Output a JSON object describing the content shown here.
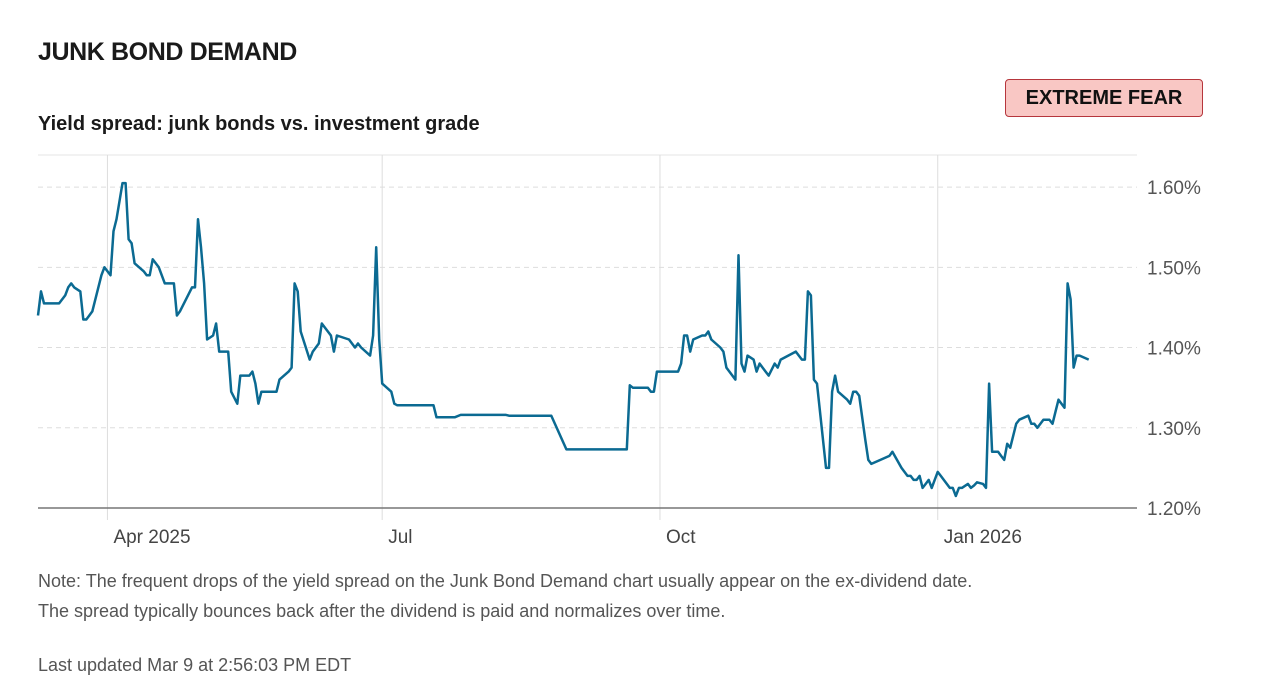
{
  "header": {
    "title": "JUNK BOND DEMAND",
    "subtitle": "Yield spread: junk bonds vs. investment grade",
    "badge": "EXTREME FEAR"
  },
  "colors": {
    "line": "#0b6a92",
    "grid": "#dddddd",
    "badge_bg": "#f9c7c4",
    "badge_border": "#b6363c"
  },
  "chart_data": {
    "type": "line",
    "title": "Yield spread: junk bonds vs. investment grade",
    "xlabel": "",
    "ylabel": "",
    "y_unit": "%",
    "ylim": [
      1.2,
      1.64
    ],
    "yticks": [
      1.2,
      1.3,
      1.4,
      1.5,
      1.6
    ],
    "ytick_labels": [
      "1.20%",
      "1.30%",
      "1.40%",
      "1.50%",
      "1.60%"
    ],
    "x_unit": "days since 2025-03-09",
    "xlim": [
      0,
      364
    ],
    "xticks": [
      {
        "x": 23,
        "label": "Apr 2025"
      },
      {
        "x": 114,
        "label": "Jul"
      },
      {
        "x": 206,
        "label": "Oct"
      },
      {
        "x": 298,
        "label": "Jan 2026"
      }
    ],
    "gridlines": true,
    "series": [
      {
        "name": "Yield spread",
        "points": [
          [
            0,
            1.44
          ],
          [
            1,
            1.47
          ],
          [
            2,
            1.455
          ],
          [
            7,
            1.455
          ],
          [
            9,
            1.465
          ],
          [
            10,
            1.475
          ],
          [
            11,
            1.48
          ],
          [
            12,
            1.475
          ],
          [
            14,
            1.47
          ],
          [
            15,
            1.435
          ],
          [
            16,
            1.435
          ],
          [
            17,
            1.44
          ],
          [
            18,
            1.445
          ],
          [
            21,
            1.49
          ],
          [
            22,
            1.5
          ],
          [
            24,
            1.49
          ],
          [
            25,
            1.545
          ],
          [
            26,
            1.56
          ],
          [
            28,
            1.605
          ],
          [
            29,
            1.605
          ],
          [
            30,
            1.535
          ],
          [
            31,
            1.53
          ],
          [
            32,
            1.505
          ],
          [
            35,
            1.495
          ],
          [
            36,
            1.49
          ],
          [
            37,
            1.49
          ],
          [
            38,
            1.51
          ],
          [
            40,
            1.5
          ],
          [
            42,
            1.48
          ],
          [
            45,
            1.48
          ],
          [
            46,
            1.44
          ],
          [
            47,
            1.445
          ],
          [
            51,
            1.475
          ],
          [
            52,
            1.475
          ],
          [
            53,
            1.56
          ],
          [
            54,
            1.525
          ],
          [
            55,
            1.48
          ],
          [
            56,
            1.41
          ],
          [
            58,
            1.415
          ],
          [
            59,
            1.43
          ],
          [
            60,
            1.395
          ],
          [
            63,
            1.395
          ],
          [
            64,
            1.345
          ],
          [
            66,
            1.33
          ],
          [
            67,
            1.365
          ],
          [
            70,
            1.365
          ],
          [
            71,
            1.37
          ],
          [
            72,
            1.355
          ],
          [
            73,
            1.33
          ],
          [
            74,
            1.345
          ],
          [
            79,
            1.345
          ],
          [
            80,
            1.36
          ],
          [
            83,
            1.37
          ],
          [
            84,
            1.375
          ],
          [
            85,
            1.48
          ],
          [
            86,
            1.47
          ],
          [
            87,
            1.42
          ],
          [
            90,
            1.385
          ],
          [
            91,
            1.395
          ],
          [
            93,
            1.405
          ],
          [
            94,
            1.43
          ],
          [
            97,
            1.415
          ],
          [
            98,
            1.395
          ],
          [
            99,
            1.415
          ],
          [
            103,
            1.41
          ],
          [
            105,
            1.4
          ],
          [
            106,
            1.405
          ],
          [
            107,
            1.4
          ],
          [
            110,
            1.39
          ],
          [
            111,
            1.415
          ],
          [
            112,
            1.525
          ],
          [
            113,
            1.41
          ],
          [
            114,
            1.355
          ],
          [
            117,
            1.345
          ],
          [
            118,
            1.33
          ],
          [
            119,
            1.328
          ],
          [
            131,
            1.328
          ],
          [
            132,
            1.313
          ],
          [
            138,
            1.313
          ],
          [
            140,
            1.316
          ],
          [
            155,
            1.316
          ],
          [
            156,
            1.315
          ],
          [
            170,
            1.315
          ],
          [
            175,
            1.273
          ],
          [
            195,
            1.273
          ],
          [
            196,
            1.353
          ],
          [
            197,
            1.35
          ],
          [
            198,
            1.35
          ],
          [
            202,
            1.35
          ],
          [
            203,
            1.345
          ],
          [
            204,
            1.345
          ],
          [
            205,
            1.37
          ],
          [
            212,
            1.37
          ],
          [
            213,
            1.38
          ],
          [
            214,
            1.415
          ],
          [
            215,
            1.415
          ],
          [
            216,
            1.395
          ],
          [
            217,
            1.41
          ],
          [
            220,
            1.415
          ],
          [
            221,
            1.415
          ],
          [
            222,
            1.42
          ],
          [
            223,
            1.41
          ],
          [
            226,
            1.4
          ],
          [
            227,
            1.395
          ],
          [
            228,
            1.375
          ],
          [
            230,
            1.365
          ],
          [
            231,
            1.36
          ],
          [
            232,
            1.515
          ],
          [
            233,
            1.38
          ],
          [
            234,
            1.37
          ],
          [
            235,
            1.39
          ],
          [
            237,
            1.385
          ],
          [
            238,
            1.37
          ],
          [
            239,
            1.38
          ],
          [
            241,
            1.37
          ],
          [
            242,
            1.365
          ],
          [
            244,
            1.38
          ],
          [
            245,
            1.375
          ],
          [
            246,
            1.385
          ],
          [
            251,
            1.395
          ],
          [
            253,
            1.385
          ],
          [
            254,
            1.385
          ],
          [
            255,
            1.47
          ],
          [
            256,
            1.465
          ],
          [
            257,
            1.36
          ],
          [
            258,
            1.355
          ],
          [
            261,
            1.25
          ],
          [
            262,
            1.25
          ],
          [
            263,
            1.345
          ],
          [
            264,
            1.365
          ],
          [
            265,
            1.345
          ],
          [
            268,
            1.335
          ],
          [
            269,
            1.33
          ],
          [
            270,
            1.345
          ],
          [
            271,
            1.345
          ],
          [
            272,
            1.34
          ],
          [
            274,
            1.285
          ],
          [
            275,
            1.26
          ],
          [
            276,
            1.255
          ],
          [
            279,
            1.26
          ],
          [
            282,
            1.265
          ],
          [
            283,
            1.27
          ],
          [
            286,
            1.25
          ],
          [
            287,
            1.245
          ],
          [
            288,
            1.24
          ],
          [
            289,
            1.24
          ],
          [
            290,
            1.235
          ],
          [
            291,
            1.235
          ],
          [
            292,
            1.24
          ],
          [
            293,
            1.225
          ],
          [
            294,
            1.23
          ],
          [
            295,
            1.235
          ],
          [
            296,
            1.225
          ],
          [
            298,
            1.245
          ],
          [
            299,
            1.24
          ],
          [
            301,
            1.23
          ],
          [
            302,
            1.225
          ],
          [
            303,
            1.225
          ],
          [
            304,
            1.215
          ],
          [
            305,
            1.225
          ],
          [
            306,
            1.225
          ],
          [
            308,
            1.23
          ],
          [
            309,
            1.225
          ],
          [
            310,
            1.228
          ],
          [
            311,
            1.232
          ],
          [
            313,
            1.23
          ],
          [
            314,
            1.225
          ],
          [
            315,
            1.355
          ],
          [
            316,
            1.27
          ],
          [
            318,
            1.27
          ],
          [
            319,
            1.265
          ],
          [
            320,
            1.26
          ],
          [
            321,
            1.28
          ],
          [
            322,
            1.275
          ],
          [
            323,
            1.29
          ],
          [
            324,
            1.305
          ],
          [
            325,
            1.31
          ],
          [
            328,
            1.315
          ],
          [
            329,
            1.305
          ],
          [
            330,
            1.305
          ],
          [
            331,
            1.3
          ],
          [
            333,
            1.31
          ],
          [
            334,
            1.31
          ],
          [
            335,
            1.31
          ],
          [
            336,
            1.305
          ],
          [
            337,
            1.32
          ],
          [
            338,
            1.335
          ],
          [
            339,
            1.33
          ],
          [
            340,
            1.325
          ],
          [
            341,
            1.48
          ],
          [
            342,
            1.46
          ],
          [
            343,
            1.375
          ],
          [
            344,
            1.39
          ],
          [
            345,
            1.39
          ],
          [
            348,
            1.385
          ]
        ]
      }
    ]
  },
  "footer": {
    "note_line1": "Note: The frequent drops of the yield spread on the Junk Bond Demand chart usually appear on the ex-dividend date.",
    "note_line2": "The spread typically bounces back after the dividend is paid and normalizes over time.",
    "updated": "Last updated Mar 9 at 2:56:03 PM EDT"
  }
}
